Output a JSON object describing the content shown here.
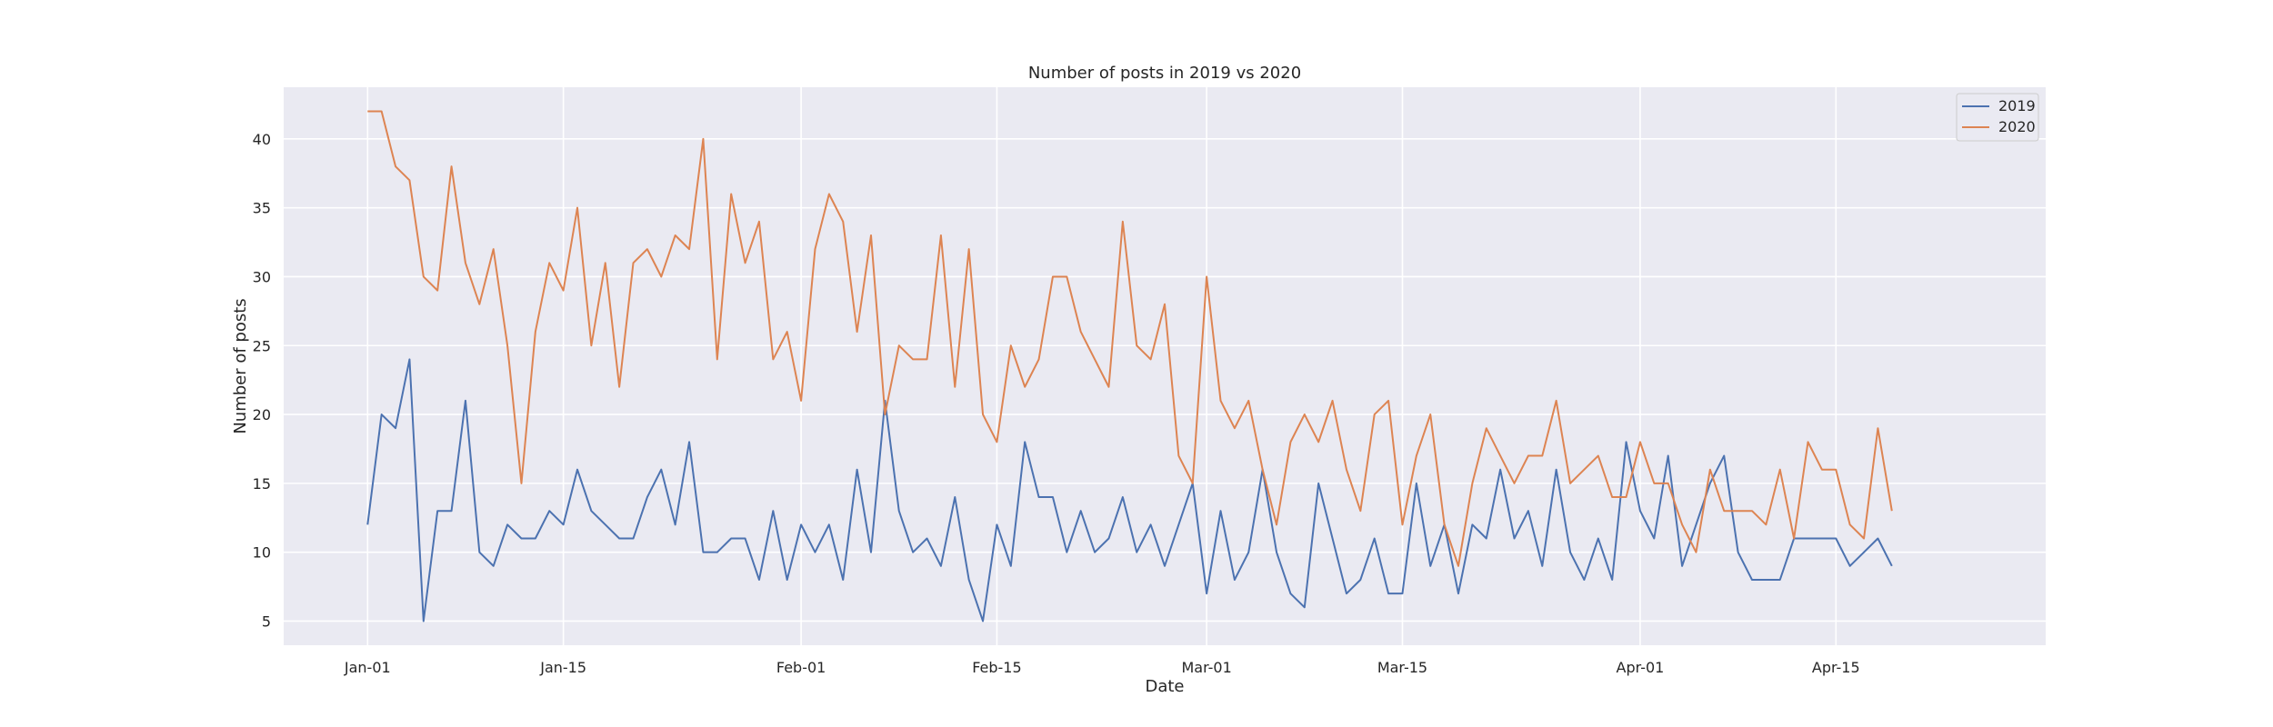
{
  "chart_data": {
    "type": "line",
    "title": "Number of posts in 2019 vs 2020",
    "xlabel": "Date",
    "ylabel": "Number of posts",
    "x_ticks": [
      {
        "date": "2020-01-01",
        "label": "Jan-01"
      },
      {
        "date": "2020-01-15",
        "label": "Jan-15"
      },
      {
        "date": "2020-02-01",
        "label": "Feb-01"
      },
      {
        "date": "2020-02-15",
        "label": "Feb-15"
      },
      {
        "date": "2020-03-01",
        "label": "Mar-01"
      },
      {
        "date": "2020-03-15",
        "label": "Mar-15"
      },
      {
        "date": "2020-04-01",
        "label": "Apr-01"
      },
      {
        "date": "2020-04-15",
        "label": "Apr-15"
      }
    ],
    "y_ticks": [
      5,
      10,
      15,
      20,
      25,
      30,
      35,
      40
    ],
    "xlim": [
      "2019-12-26",
      "2020-04-30"
    ],
    "ylim": [
      3.25,
      43.75
    ],
    "x_start": "2020-01-01",
    "x_end": "2020-04-19",
    "grid": true,
    "legend_position": "top-right",
    "background_color": "#eaeaf2",
    "series": [
      {
        "name": "2019",
        "color": "#4c72b0",
        "values": [
          12,
          20,
          19,
          24,
          5,
          13,
          13,
          21,
          10,
          9,
          12,
          11,
          11,
          13,
          12,
          16,
          13,
          12,
          11,
          11,
          14,
          16,
          12,
          18,
          10,
          10,
          11,
          11,
          8,
          13,
          8,
          12,
          10,
          12,
          8,
          16,
          10,
          21,
          13,
          10,
          11,
          9,
          14,
          8,
          5,
          12,
          9,
          18,
          14,
          14,
          10,
          13,
          10,
          11,
          14,
          10,
          12,
          9,
          12,
          15,
          7,
          13,
          8,
          10,
          16,
          10,
          7,
          6,
          15,
          11,
          7,
          8,
          11,
          7,
          7,
          15,
          9,
          12,
          7,
          12,
          11,
          16,
          11,
          13,
          9,
          16,
          10,
          8,
          11,
          8,
          18,
          13,
          11,
          17,
          9,
          12,
          15,
          17,
          10,
          8,
          8,
          8,
          11,
          11,
          11,
          11,
          9,
          10,
          11,
          9
        ]
      },
      {
        "name": "2020",
        "color": "#dd8452",
        "values": [
          42,
          42,
          38,
          37,
          30,
          29,
          38,
          31,
          28,
          32,
          25,
          15,
          26,
          31,
          29,
          35,
          25,
          31,
          22,
          31,
          32,
          30,
          33,
          32,
          40,
          24,
          36,
          31,
          34,
          24,
          26,
          21,
          32,
          36,
          34,
          26,
          33,
          20,
          25,
          24,
          24,
          33,
          22,
          32,
          20,
          18,
          25,
          22,
          24,
          30,
          30,
          26,
          24,
          22,
          34,
          25,
          24,
          28,
          17,
          15,
          30,
          21,
          19,
          21,
          16,
          12,
          18,
          20,
          18,
          21,
          16,
          13,
          20,
          21,
          12,
          17,
          20,
          12,
          9,
          15,
          19,
          17,
          15,
          17,
          17,
          21,
          15,
          16,
          17,
          14,
          14,
          18,
          15,
          15,
          12,
          10,
          16,
          13,
          13,
          13,
          12,
          16,
          11,
          18,
          16,
          16,
          12,
          11,
          19,
          13
        ]
      }
    ]
  }
}
